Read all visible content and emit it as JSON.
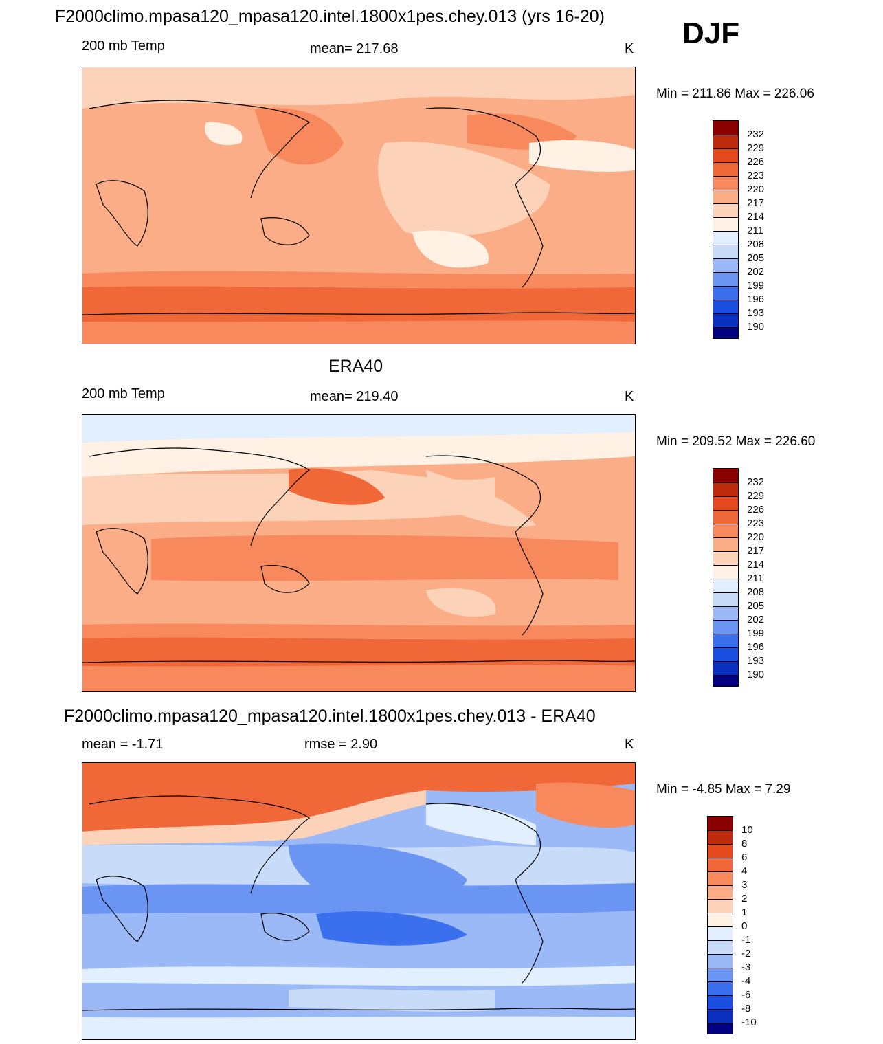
{
  "season": "DJF",
  "colors": {
    "temp": [
      "#000080",
      "#0a1c9c",
      "#0b2fbe",
      "#1a4ee0",
      "#3a6fed",
      "#6a95f2",
      "#9ab9f6",
      "#c8dcf9",
      "#e2efff",
      "#fff1e4",
      "#fcd3b8",
      "#faad86",
      "#f7895c",
      "#f06738",
      "#e4491c",
      "#bc2c0c",
      "#8b0000"
    ],
    "diff": [
      "#000080",
      "#0a1c9c",
      "#0b2fbe",
      "#1a4ee0",
      "#3a6fed",
      "#6a95f2",
      "#9ab9f6",
      "#c8dcf9",
      "#e2efff",
      "#fff1e4",
      "#fcd3b8",
      "#faad86",
      "#f7895c",
      "#f06738",
      "#e4491c",
      "#bc2c0c",
      "#8b0000"
    ]
  },
  "panels": [
    {
      "title": "F2000climo.mpasa120_mpasa120.intel.1800x1pes.chey.013 (yrs 16-20)",
      "left_label": "200 mb Temp",
      "center_label": "mean= 217.68",
      "units": "K",
      "minmax": "Min = 211.86 Max = 226.06",
      "levels": [
        "232",
        "229",
        "226",
        "223",
        "220",
        "217",
        "214",
        "211",
        "208",
        "205",
        "202",
        "199",
        "196",
        "193",
        "190"
      ],
      "background_level": "217"
    },
    {
      "title": "ERA40",
      "left_label": "200 mb Temp",
      "center_label": "mean= 219.40",
      "units": "K",
      "minmax": "Min = 209.52 Max = 226.60",
      "levels": [
        "232",
        "229",
        "226",
        "223",
        "220",
        "217",
        "214",
        "211",
        "208",
        "205",
        "202",
        "199",
        "196",
        "193",
        "190"
      ],
      "background_level": "220"
    },
    {
      "title": "F2000climo.mpasa120_mpasa120.intel.1800x1pes.chey.013 - ERA40",
      "left_label": "mean =  -1.71",
      "center_label": "rmse =   2.90",
      "units": "K",
      "minmax": "Min =  -4.85 Max =   7.29",
      "levels": [
        "10",
        "8",
        "6",
        "4",
        "3",
        "2",
        "1",
        "0",
        "-1",
        "-2",
        "-3",
        "-4",
        "-6",
        "-8",
        "-10"
      ],
      "background_level": "-2"
    }
  ]
}
